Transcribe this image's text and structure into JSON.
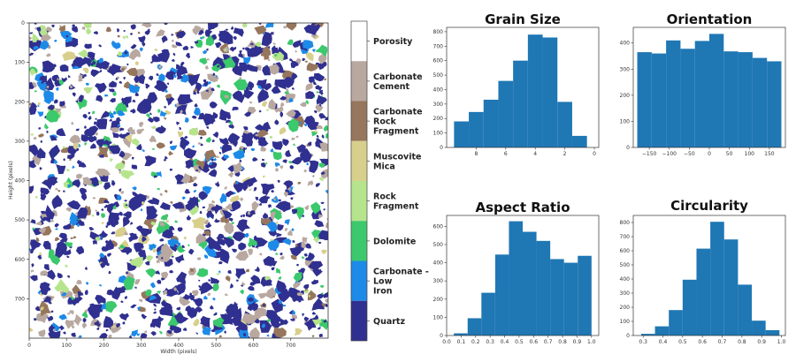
{
  "colors": {
    "porosity": "#ffffff",
    "carbonate_cement": "#b8a8a0",
    "carbonate_rock_fragment": "#96765c",
    "muscovite_mica": "#d8cf8c",
    "rock_fragment": "#b6e48c",
    "dolomite": "#3cc86c",
    "carbonate_low_iron": "#1d8ae8",
    "quartz": "#303090",
    "bar": "#1f77b4"
  },
  "chart_data": [
    {
      "type": "heatmap",
      "title": "",
      "xlabel": "Width (pixels)",
      "ylabel": "Height (pixels)",
      "xlim": [
        0,
        800
      ],
      "ylim": [
        800,
        0
      ],
      "x_ticks": [
        0,
        100,
        200,
        300,
        400,
        500,
        600,
        700
      ],
      "y_ticks": [
        0,
        100,
        200,
        300,
        400,
        500,
        600,
        700
      ],
      "legend": {
        "placement": "right",
        "classes": [
          {
            "label": "Porosity",
            "color_key": "porosity"
          },
          {
            "label": "Carbonate Cement",
            "color_key": "carbonate_cement"
          },
          {
            "label": "Carbonate Rock Fragment",
            "color_key": "carbonate_rock_fragment"
          },
          {
            "label": "Muscovite Mica",
            "color_key": "muscovite_mica"
          },
          {
            "label": "Rock Fragment",
            "color_key": "rock_fragment"
          },
          {
            "label": "Dolomite",
            "color_key": "dolomite"
          },
          {
            "label": "Carbonate - Low Iron",
            "color_key": "carbonate_low_iron"
          },
          {
            "label": "Quartz",
            "color_key": "quartz"
          }
        ]
      }
    },
    {
      "type": "bar",
      "title": "Grain Size",
      "bin_edges": [
        9.5,
        8.5,
        7.5,
        6.5,
        5.5,
        4.5,
        3.5,
        2.5,
        1.5,
        0.5
      ],
      "values": [
        180,
        245,
        330,
        460,
        600,
        780,
        760,
        315,
        80
      ],
      "xlim": [
        10,
        -0.3
      ],
      "ylim": [
        0,
        830
      ],
      "x_ticks": [
        8,
        6,
        4,
        2,
        0
      ],
      "y_ticks": [
        0,
        100,
        200,
        300,
        400,
        500,
        600,
        700,
        800
      ]
    },
    {
      "type": "bar",
      "title": "Orientation",
      "bin_edges": [
        -180,
        -144,
        -108,
        -72,
        -36,
        0,
        36,
        72,
        108,
        144,
        180
      ],
      "values": [
        365,
        360,
        410,
        378,
        408,
        435,
        368,
        365,
        343,
        330
      ],
      "xlim": [
        -190,
        190
      ],
      "ylim": [
        0,
        460
      ],
      "x_ticks": [
        -150,
        -100,
        -50,
        0,
        50,
        100,
        150
      ],
      "y_ticks": [
        0,
        100,
        200,
        300,
        400
      ]
    },
    {
      "type": "bar",
      "title": "Aspect Ratio",
      "bin_edges": [
        0.05,
        0.145,
        0.24,
        0.335,
        0.43,
        0.525,
        0.62,
        0.715,
        0.81,
        0.905,
        1.0
      ],
      "values": [
        12,
        95,
        235,
        445,
        628,
        570,
        520,
        420,
        400,
        438
      ],
      "xlim": [
        0,
        1.05
      ],
      "ylim": [
        0,
        660
      ],
      "x_ticks": [
        0.0,
        0.1,
        0.2,
        0.3,
        0.4,
        0.5,
        0.6,
        0.7,
        0.8,
        0.9,
        1.0
      ],
      "y_ticks": [
        0,
        100,
        200,
        300,
        400,
        500,
        600
      ]
    },
    {
      "type": "bar",
      "title": "Circularity",
      "bin_edges": [
        0.29,
        0.36,
        0.43,
        0.5,
        0.57,
        0.64,
        0.71,
        0.78,
        0.85,
        0.92,
        0.99
      ],
      "values": [
        12,
        65,
        180,
        395,
        615,
        805,
        680,
        360,
        105,
        38
      ],
      "xlim": [
        0.25,
        1.02
      ],
      "ylim": [
        0,
        850
      ],
      "x_ticks": [
        0.3,
        0.4,
        0.5,
        0.6,
        0.7,
        0.8,
        0.9,
        1.0
      ],
      "y_ticks": [
        0,
        100,
        200,
        300,
        400,
        500,
        600,
        700,
        800
      ]
    }
  ]
}
